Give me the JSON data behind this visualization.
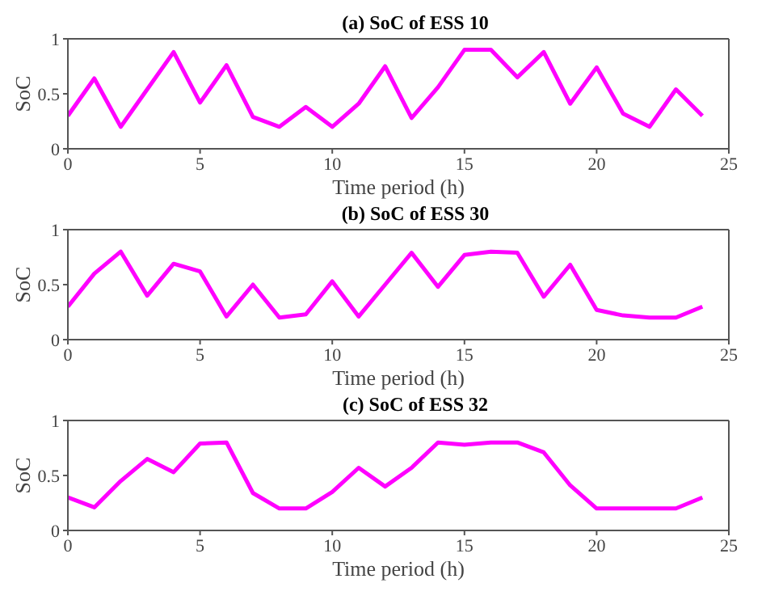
{
  "chart_data": [
    {
      "type": "line",
      "title": "(a) SoC of ESS 10",
      "xlabel": "Time period (h)",
      "ylabel": "SoC",
      "x": [
        0,
        1,
        2,
        3,
        4,
        5,
        6,
        7,
        8,
        9,
        10,
        11,
        12,
        13,
        14,
        15,
        16,
        17,
        18,
        19,
        20,
        21,
        22,
        23,
        24
      ],
      "series": [
        {
          "color": "#ff00ff",
          "values": [
            0.3,
            0.64,
            0.2,
            0.54,
            0.88,
            0.42,
            0.76,
            0.29,
            0.2,
            0.38,
            0.2,
            0.41,
            0.75,
            0.28,
            0.56,
            0.9,
            0.9,
            0.65,
            0.88,
            0.41,
            0.74,
            0.32,
            0.2,
            0.54,
            0.3
          ]
        }
      ],
      "xlim": [
        0,
        25
      ],
      "xticks": [
        0,
        5,
        10,
        15,
        20,
        25
      ],
      "ylim": [
        0,
        1
      ],
      "yticks": [
        0,
        0.5,
        1
      ]
    },
    {
      "type": "line",
      "title": "(b) SoC of ESS 30",
      "xlabel": "Time period (h)",
      "ylabel": "SoC",
      "x": [
        0,
        1,
        2,
        3,
        4,
        5,
        6,
        7,
        8,
        9,
        10,
        11,
        12,
        13,
        14,
        15,
        16,
        17,
        18,
        19,
        20,
        21,
        22,
        23,
        24
      ],
      "series": [
        {
          "color": "#ff00ff",
          "values": [
            0.3,
            0.6,
            0.8,
            0.4,
            0.69,
            0.62,
            0.21,
            0.5,
            0.2,
            0.23,
            0.53,
            0.21,
            0.5,
            0.79,
            0.48,
            0.77,
            0.8,
            0.79,
            0.39,
            0.68,
            0.27,
            0.22,
            0.2,
            0.2,
            0.3
          ]
        }
      ],
      "xlim": [
        0,
        25
      ],
      "xticks": [
        0,
        5,
        10,
        15,
        20,
        25
      ],
      "ylim": [
        0,
        1
      ],
      "yticks": [
        0,
        0.5,
        1
      ]
    },
    {
      "type": "line",
      "title": "(c) SoC of ESS 32",
      "xlabel": "Time period (h)",
      "ylabel": "SoC",
      "x": [
        0,
        1,
        2,
        3,
        4,
        5,
        6,
        7,
        8,
        9,
        10,
        11,
        12,
        13,
        14,
        15,
        16,
        17,
        18,
        19,
        20,
        21,
        22,
        23,
        24
      ],
      "series": [
        {
          "color": "#ff00ff",
          "values": [
            0.3,
            0.21,
            0.45,
            0.65,
            0.53,
            0.79,
            0.8,
            0.34,
            0.2,
            0.2,
            0.35,
            0.57,
            0.4,
            0.57,
            0.8,
            0.78,
            0.8,
            0.8,
            0.71,
            0.41,
            0.2,
            0.2,
            0.2,
            0.2,
            0.3
          ]
        }
      ],
      "xlim": [
        0,
        25
      ],
      "xticks": [
        0,
        5,
        10,
        15,
        20,
        25
      ],
      "ylim": [
        0,
        1
      ],
      "yticks": [
        0,
        0.5,
        1
      ]
    }
  ]
}
